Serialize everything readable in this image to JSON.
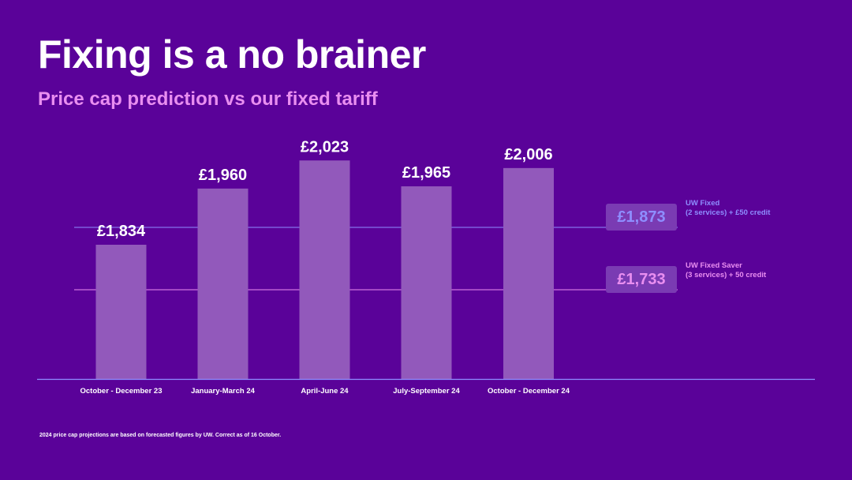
{
  "title": "Fixing is a no brainer",
  "subtitle": "Price cap prediction vs our fixed tariff",
  "chart_data": {
    "type": "bar",
    "categories": [
      "October - December 23",
      "January-March 24",
      "April-June 24",
      "July-September 24",
      "October - December 24"
    ],
    "values": [
      1834,
      1960,
      2023,
      1965,
      2006
    ],
    "value_labels": [
      "£1,834",
      "£1,960",
      "£2,023",
      "£1,965",
      "£2,006"
    ],
    "reference_lines": [
      {
        "value": 1873,
        "value_label": "£1,873",
        "note_line1": "UW Fixed",
        "note_line2": "(2 services) + £50 credit",
        "color": "#8e8eff"
      },
      {
        "value": 1733,
        "value_label": "£1,733",
        "note_line1": "UW Fixed Saver",
        "note_line2": "(3 services) + 50 credit",
        "color": "#e98ef0"
      }
    ],
    "bar_color": "#9259bb",
    "axis_color": "#8e8eff"
  },
  "footnote": "2024 price cap projections are based on forecasted figures by UW. Correct as of 16 October."
}
